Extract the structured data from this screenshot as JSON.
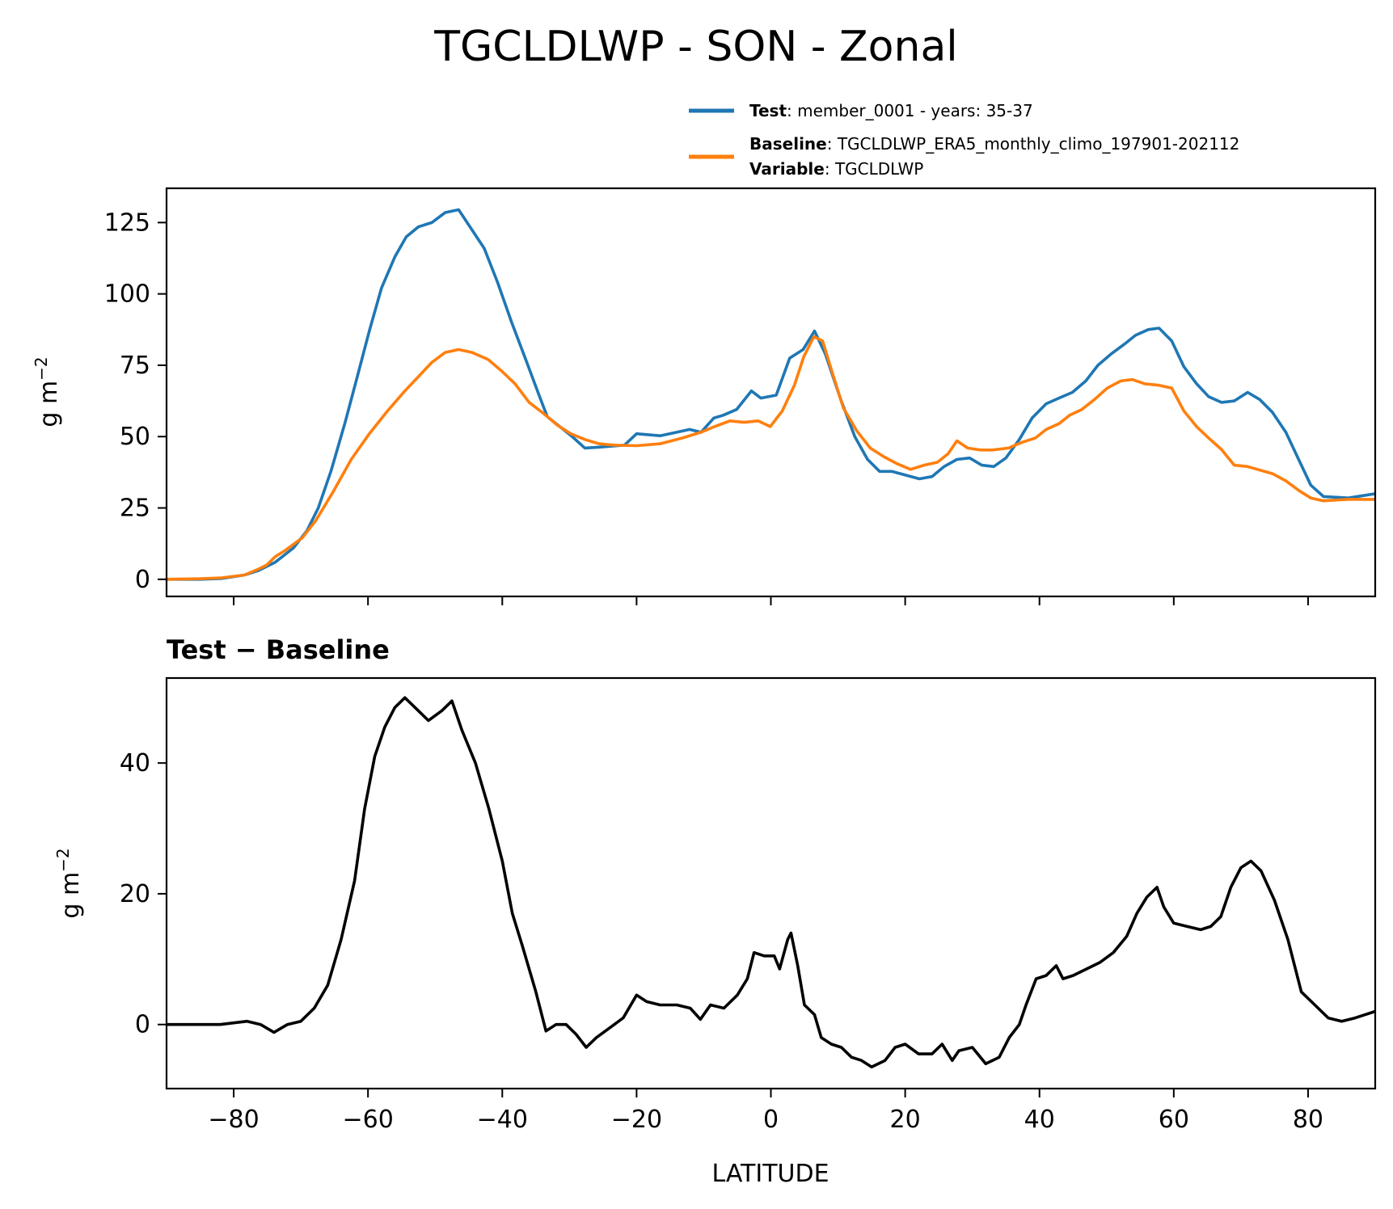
{
  "chart_data": [
    {
      "type": "line",
      "title": "TGCLDLWP - SON - Zonal",
      "xlabel": "",
      "ylabel": "g m⁻²",
      "xlim": [
        -90,
        90
      ],
      "ylim": [
        -6,
        137
      ],
      "xticks": [
        -80,
        -60,
        -40,
        -20,
        0,
        20,
        40,
        60,
        80
      ],
      "yticks": [
        0,
        25,
        50,
        75,
        100,
        125
      ],
      "grid": false,
      "legend": {
        "placement": "top-right-outside",
        "entries": [
          {
            "series": "Test",
            "bold": "Test",
            "text": ": member_0001 - years: 35-37",
            "text2_bold": "",
            "text2": "",
            "color": "#1f77b4"
          },
          {
            "series": "Baseline",
            "bold": "Baseline",
            "text": ": TGCLDLWP_ERA5_monthly_climo_197901-202112",
            "text2_bold": "Variable",
            "text2": ": TGCLDLWP",
            "color": "#ff7f0e"
          }
        ]
      },
      "series": [
        {
          "name": "Test",
          "color": "#1f77b4",
          "x": [
            -90,
            -85,
            -81.8,
            -78.4,
            -76.4,
            -73.8,
            -71.1,
            -69.1,
            -67.4,
            -65.5,
            -63.4,
            -61.7,
            -59.8,
            -58,
            -56,
            -54.3,
            -52.5,
            -50.5,
            -48.5,
            -46.5,
            -42.7,
            -40.7,
            -38.6,
            -36.5,
            -34.6,
            -33.3,
            -31.7,
            -29.6,
            -27.7,
            -25.6,
            -21.8,
            -20,
            -16.5,
            -12.1,
            -10.4,
            -8.5,
            -7.1,
            -5.1,
            -2.9,
            -1.5,
            0.8,
            2.8,
            4.8,
            6.5,
            8.1,
            10.4,
            12.5,
            14.4,
            16.2,
            18,
            22.1,
            24,
            25.8,
            27.7,
            29.6,
            31.4,
            33.2,
            35,
            37,
            38.9,
            41,
            42.9,
            44.9,
            46.9,
            48.7,
            50.7,
            52.7,
            54.3,
            56.2,
            57.8,
            59.7,
            61.5,
            63.4,
            65.2,
            67.1,
            69,
            71,
            72.8,
            74.7,
            76.7,
            78.6,
            80.4,
            82.3,
            86,
            90
          ],
          "y": [
            0,
            0,
            0.3,
            1.5,
            3,
            6,
            11,
            17,
            25,
            38,
            55,
            70,
            87,
            102,
            113,
            120,
            123.5,
            125,
            128.5,
            129.5,
            116,
            104,
            90,
            77,
            65,
            57,
            54,
            50,
            46,
            46.3,
            47,
            51,
            50.3,
            52.5,
            51.5,
            56.5,
            57.5,
            59.5,
            66,
            63.5,
            64.5,
            77.5,
            80.5,
            87,
            79,
            63,
            50,
            42,
            37.8,
            37.8,
            35.2,
            36,
            39.5,
            42,
            42.5,
            40,
            39.5,
            42.5,
            49,
            56.5,
            61.5,
            63.5,
            65.5,
            69.5,
            75,
            79,
            82.5,
            85.5,
            87.5,
            88,
            83.5,
            74.5,
            68.5,
            64,
            62,
            62.5,
            65.5,
            63,
            58.5,
            51.5,
            42,
            33,
            29,
            28.5,
            30
          ]
        },
        {
          "name": "Baseline",
          "color": "#ff7f0e",
          "x": [
            -90,
            -85,
            -81.8,
            -78.4,
            -76.4,
            -75.1,
            -73.8,
            -72.4,
            -69.8,
            -67.8,
            -65.1,
            -62.5,
            -59.8,
            -57.1,
            -54.5,
            -52.5,
            -50.5,
            -48.5,
            -46.5,
            -44.5,
            -42.1,
            -40.1,
            -38.1,
            -36,
            -33.8,
            -31.8,
            -29.8,
            -27.7,
            -25.6,
            -23.4,
            -20,
            -16.5,
            -13.2,
            -10.4,
            -8.4,
            -6.1,
            -4,
            -1.9,
            -0.1,
            1.7,
            3.5,
            4.9,
            6.4,
            7.7,
            9.2,
            10.8,
            12.8,
            14.8,
            16.8,
            18.8,
            20.8,
            22.8,
            24.8,
            26.4,
            27.7,
            29.3,
            31.2,
            33,
            35.4,
            37.4,
            39.4,
            41,
            42.9,
            44.5,
            46.3,
            48.2,
            50.1,
            52.1,
            53.8,
            55.7,
            57.8,
            59.7,
            61.5,
            63.4,
            65.2,
            67.1,
            69,
            71,
            74.7,
            76.7,
            78.7,
            80.4,
            82.3,
            86,
            90
          ],
          "y": [
            0,
            0.2,
            0.5,
            1.5,
            3.5,
            5,
            8,
            10,
            14.5,
            20.5,
            31,
            42,
            51,
            59,
            66,
            71,
            76,
            79.5,
            80.5,
            79.5,
            77,
            73,
            68.5,
            62,
            58,
            54,
            51,
            49,
            47.5,
            47,
            46.8,
            47.5,
            49.5,
            51.5,
            53.5,
            55.5,
            55,
            55.5,
            53.5,
            59,
            68,
            78,
            85,
            83.5,
            72,
            60,
            52,
            46,
            43,
            40.5,
            38.5,
            40,
            41,
            44,
            48.5,
            46,
            45.3,
            45.3,
            46,
            48,
            49.5,
            52.5,
            54.5,
            57.5,
            59.5,
            63,
            67,
            69.5,
            70,
            68.5,
            68,
            67,
            59,
            53.5,
            49.5,
            45.5,
            40,
            39.5,
            37,
            34.5,
            31,
            28.5,
            27.5,
            28,
            28
          ]
        }
      ]
    },
    {
      "type": "line",
      "title": "Test − Baseline",
      "xlabel": "LATITUDE",
      "ylabel": "g m⁻²",
      "xlim": [
        -90,
        90
      ],
      "ylim": [
        -9.8,
        53
      ],
      "xticks": [
        -80,
        -60,
        -40,
        -20,
        0,
        20,
        40,
        60,
        80
      ],
      "xticklabels": [
        "−80",
        "−60",
        "−40",
        "−20",
        "0",
        "20",
        "40",
        "60",
        "80"
      ],
      "yticks": [
        0,
        20,
        40
      ],
      "grid": false,
      "series": [
        {
          "name": "Test - Baseline",
          "color": "#000000",
          "x": [
            -90,
            -86,
            -82,
            -78,
            -76,
            -74,
            -72,
            -70,
            -68,
            -66,
            -64,
            -62,
            -60.5,
            -59,
            -57.5,
            -56,
            -54.5,
            -53,
            -51,
            -49,
            -47.5,
            -46,
            -44,
            -42,
            -40,
            -38.5,
            -37,
            -35,
            -33.5,
            -32,
            -30.5,
            -29,
            -27.5,
            -26,
            -24,
            -22,
            -20,
            -18.5,
            -16.5,
            -14,
            -12,
            -10.5,
            -9,
            -7,
            -5,
            -3.5,
            -2.5,
            -1,
            0.5,
            1.3,
            2.5,
            3,
            4,
            5,
            6.5,
            7.5,
            9,
            10.5,
            12,
            13.5,
            15,
            17,
            18.5,
            20,
            22,
            24,
            25.5,
            27,
            28,
            30,
            32,
            34,
            35.5,
            37,
            38,
            39.5,
            41,
            42.5,
            43.5,
            45,
            47,
            49,
            51,
            53,
            54.5,
            56,
            57.5,
            58.5,
            60,
            62,
            64,
            65.5,
            67,
            68.5,
            70,
            71.5,
            73,
            75,
            77,
            79,
            81,
            83,
            85,
            87,
            90
          ],
          "y": [
            0,
            0,
            0,
            0.5,
            0,
            -1.2,
            0,
            0.5,
            2.5,
            6,
            13,
            22,
            33,
            41,
            45.5,
            48.5,
            50,
            48.5,
            46.5,
            48,
            49.5,
            45,
            40,
            33,
            25,
            17,
            12,
            5,
            -1,
            0,
            0,
            -1.5,
            -3.5,
            -2,
            -0.5,
            1,
            4.5,
            3.5,
            3,
            3,
            2.5,
            0.8,
            3,
            2.5,
            4.5,
            7,
            11,
            10.5,
            10.5,
            8.5,
            13,
            14,
            9,
            3,
            1.5,
            -2,
            -3,
            -3.5,
            -5,
            -5.5,
            -6.5,
            -5.5,
            -3.5,
            -3,
            -4.5,
            -4.5,
            -3,
            -5.5,
            -4,
            -3.5,
            -6,
            -5,
            -2,
            0,
            3,
            7,
            7.5,
            9,
            7,
            7.5,
            8.5,
            9.5,
            11,
            13.5,
            17,
            19.5,
            21,
            18,
            15.5,
            15,
            14.5,
            15,
            16.5,
            21,
            24,
            25,
            23.5,
            19,
            13,
            5,
            3,
            1,
            0.5,
            1,
            2
          ]
        }
      ]
    }
  ]
}
